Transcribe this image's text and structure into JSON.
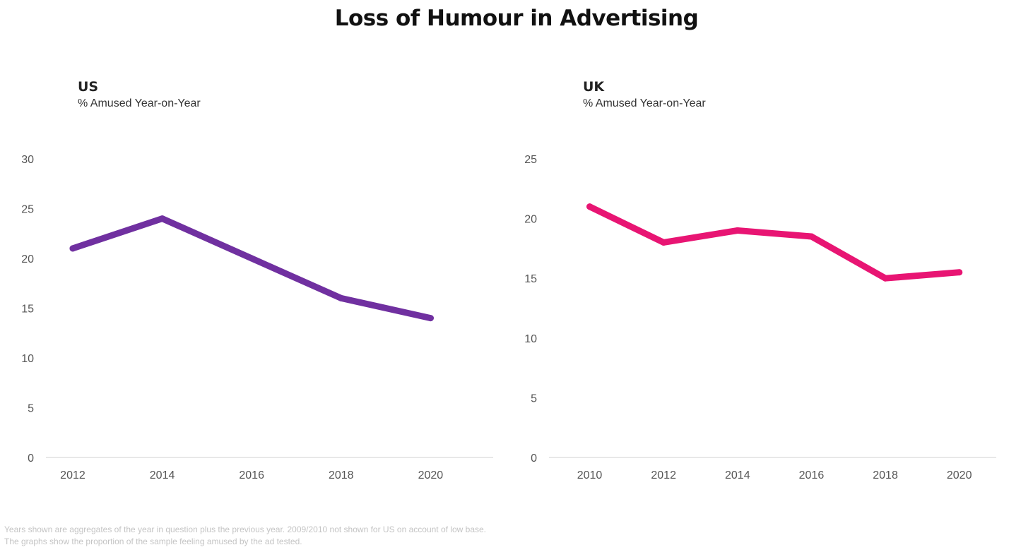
{
  "title": "Loss of Humour in Advertising",
  "panels": [
    {
      "title": "US",
      "subtitle": "% Amused Year-on-Year"
    },
    {
      "title": "UK",
      "subtitle": "% Amused Year-on-Year"
    }
  ],
  "footnotes": [
    "Years shown are aggregates of the year in question plus the previous year. 2009/2010 not shown for US on account of low base.",
    "The graphs show the proportion of the sample feeling amused by the ad tested."
  ],
  "chart_data": [
    {
      "type": "line",
      "title": "US",
      "subtitle": "% Amused Year-on-Year",
      "x": [
        2012,
        2014,
        2016,
        2018,
        2020
      ],
      "y": [
        21,
        24,
        20,
        16,
        14
      ],
      "x_ticks": [
        2012,
        2014,
        2016,
        2018,
        2020
      ],
      "y_ticks": [
        0,
        5,
        10,
        15,
        20,
        25,
        30
      ],
      "xlim": [
        2011.4,
        2021.4
      ],
      "ylim": [
        0,
        30
      ],
      "color": "#7030a0",
      "grid": false,
      "legend": "none"
    },
    {
      "type": "line",
      "title": "UK",
      "subtitle": "% Amused Year-on-Year",
      "x": [
        2010,
        2012,
        2014,
        2016,
        2018,
        2020
      ],
      "y": [
        21,
        18,
        19,
        18.5,
        15,
        15.5
      ],
      "x_ticks": [
        2010,
        2012,
        2014,
        2016,
        2018,
        2020
      ],
      "y_ticks": [
        0,
        5,
        10,
        15,
        20,
        25
      ],
      "xlim": [
        2008.9,
        2021
      ],
      "ylim": [
        0,
        25
      ],
      "color": "#e81573",
      "grid": false,
      "legend": "none"
    }
  ]
}
